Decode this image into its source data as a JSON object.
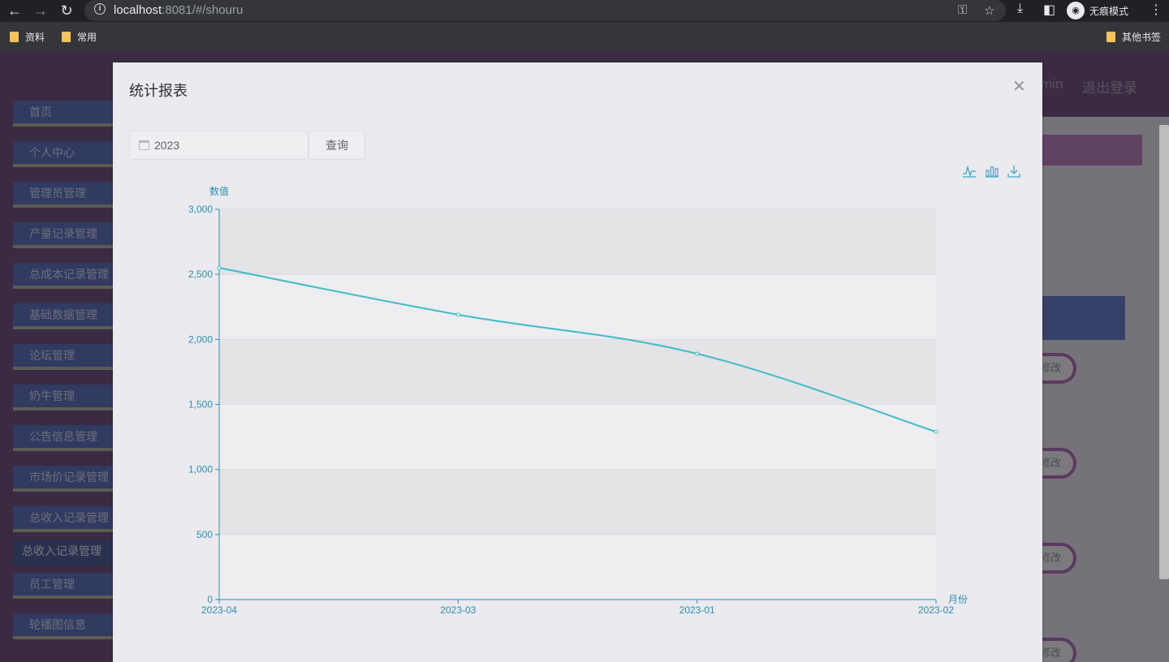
{
  "browser": {
    "url_host": "localhost",
    "url_rest": ":8081/#/shouru",
    "incognito_label": "无痕模式",
    "bookmarks": [
      "资料",
      "常用"
    ],
    "other_bookmarks": "其他书签"
  },
  "header": {
    "user": "min",
    "logout": "退出登录"
  },
  "sidebar": {
    "items": [
      {
        "label": "首页"
      },
      {
        "label": "个人中心"
      },
      {
        "label": "管理员管理"
      },
      {
        "label": "产量记录管理"
      },
      {
        "label": "总成本记录管理"
      },
      {
        "label": "基础数据管理"
      },
      {
        "label": "论坛管理"
      },
      {
        "label": "奶牛管理"
      },
      {
        "label": "公告信息管理"
      },
      {
        "label": "市场价记录管理"
      },
      {
        "label": "总收入记录管理"
      },
      {
        "label": "总收入记录管理"
      },
      {
        "label": "员工管理"
      },
      {
        "label": "轮播图信息"
      }
    ]
  },
  "content": {
    "edit_label": "修改"
  },
  "dialog": {
    "title": "统计报表",
    "year_value": "2023",
    "query_label": "查询"
  },
  "colors": {
    "line": "#3dbcc6",
    "axis": "#2a8fb5"
  },
  "chart_data": {
    "type": "line",
    "title": "",
    "categories": [
      "2023-04",
      "2023-03",
      "2023-01",
      "2023-02"
    ],
    "series": [
      {
        "values": [
          2550,
          2190,
          1890,
          1290
        ]
      }
    ],
    "xlabel": "月份",
    "ylabel": "数值",
    "ylim": [
      0,
      3000
    ],
    "yticks": [
      0,
      500,
      1000,
      1500,
      2000,
      2500,
      3000
    ],
    "ytick_labels": [
      "0",
      "500",
      "1,000",
      "1,500",
      "2,000",
      "2,500",
      "3,000"
    ],
    "grid": true,
    "legend": "none",
    "toolbox": [
      "line-chart-icon",
      "bar-chart-icon",
      "download-icon"
    ]
  }
}
